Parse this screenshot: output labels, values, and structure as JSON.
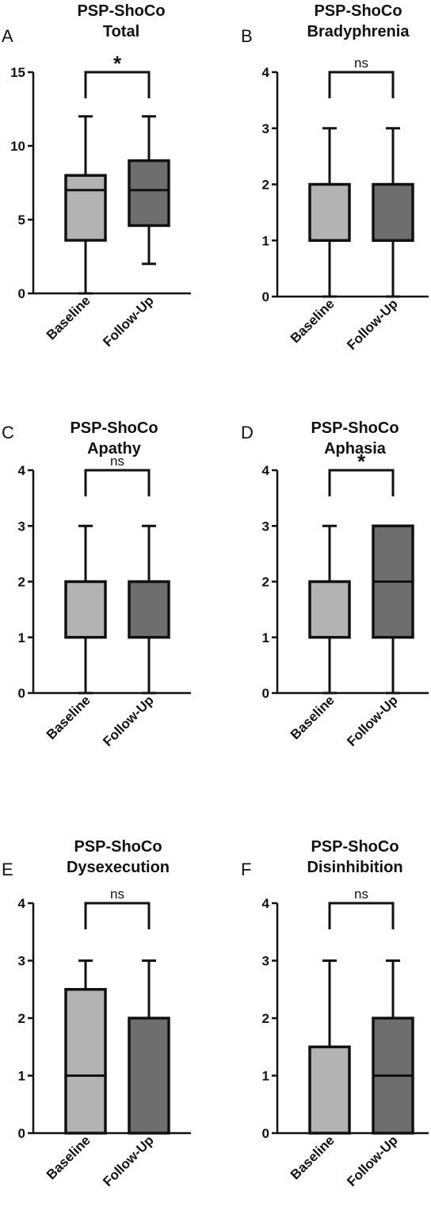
{
  "colors": {
    "baseline_fill": "#b3b3b3",
    "followup_fill": "#6e6e6e",
    "stroke": "#111111"
  },
  "chart_data": [
    {
      "type": "box",
      "panel": "A",
      "title": [
        "PSP-ShoCo",
        "Total"
      ],
      "categories": [
        "Baseline",
        "Follow-Up"
      ],
      "ylim": [
        0,
        15
      ],
      "yticks": [
        0,
        5,
        10,
        15
      ],
      "boxes": [
        {
          "min": 0,
          "q1": 3.6,
          "median": 7,
          "q3": 8,
          "max": 12
        },
        {
          "min": 2,
          "q1": 4.6,
          "median": 7,
          "q3": 9,
          "max": 12
        }
      ],
      "significance": "*"
    },
    {
      "type": "box",
      "panel": "B",
      "title": [
        "PSP-ShoCo",
        "Bradyphrenia"
      ],
      "categories": [
        "Baseline",
        "Follow-Up"
      ],
      "ylim": [
        0,
        4
      ],
      "yticks": [
        0,
        1,
        2,
        3,
        4
      ],
      "boxes": [
        {
          "min": 0,
          "q1": 1,
          "median": 1,
          "q3": 2,
          "max": 3
        },
        {
          "min": 0,
          "q1": 1,
          "median": 1,
          "q3": 2,
          "max": 3
        }
      ],
      "significance": "ns"
    },
    {
      "type": "box",
      "panel": "C",
      "title": [
        "PSP-ShoCo",
        "Apathy"
      ],
      "categories": [
        "Baseline",
        "Follow-Up"
      ],
      "ylim": [
        0,
        4
      ],
      "yticks": [
        0,
        1,
        2,
        3,
        4
      ],
      "boxes": [
        {
          "min": 0,
          "q1": 1,
          "median": 1,
          "q3": 2,
          "max": 3
        },
        {
          "min": 0,
          "q1": 1,
          "median": 1,
          "q3": 2,
          "max": 3
        }
      ],
      "significance": "ns"
    },
    {
      "type": "box",
      "panel": "D",
      "title": [
        "PSP-ShoCo",
        "Aphasia"
      ],
      "categories": [
        "Baseline",
        "Follow-Up"
      ],
      "ylim": [
        0,
        4
      ],
      "yticks": [
        0,
        1,
        2,
        3,
        4
      ],
      "boxes": [
        {
          "min": 0,
          "q1": 1,
          "median": 1,
          "q3": 2,
          "max": 3
        },
        {
          "min": 0,
          "q1": 1,
          "median": 2,
          "q3": 3,
          "max": 3
        }
      ],
      "significance": "*"
    },
    {
      "type": "box",
      "panel": "E",
      "title": [
        "PSP-ShoCo",
        "Dysexecution"
      ],
      "categories": [
        "Baseline",
        "Follow-Up"
      ],
      "ylim": [
        0,
        4
      ],
      "yticks": [
        0,
        1,
        2,
        3,
        4
      ],
      "boxes": [
        {
          "min": 0,
          "q1": 0,
          "median": 1,
          "q3": 2.5,
          "max": 3
        },
        {
          "min": 0,
          "q1": 0,
          "median": 2,
          "q3": 2,
          "max": 3
        }
      ],
      "significance": "ns"
    },
    {
      "type": "box",
      "panel": "F",
      "title": [
        "PSP-ShoCo",
        "Disinhibition"
      ],
      "categories": [
        "Baseline",
        "Follow-Up"
      ],
      "ylim": [
        0,
        4
      ],
      "yticks": [
        0,
        1,
        2,
        3,
        4
      ],
      "boxes": [
        {
          "min": 0,
          "q1": 0,
          "median": 0,
          "q3": 1.5,
          "max": 3
        },
        {
          "min": 0,
          "q1": 0,
          "median": 1,
          "q3": 2,
          "max": 3
        }
      ],
      "significance": "ns"
    }
  ]
}
